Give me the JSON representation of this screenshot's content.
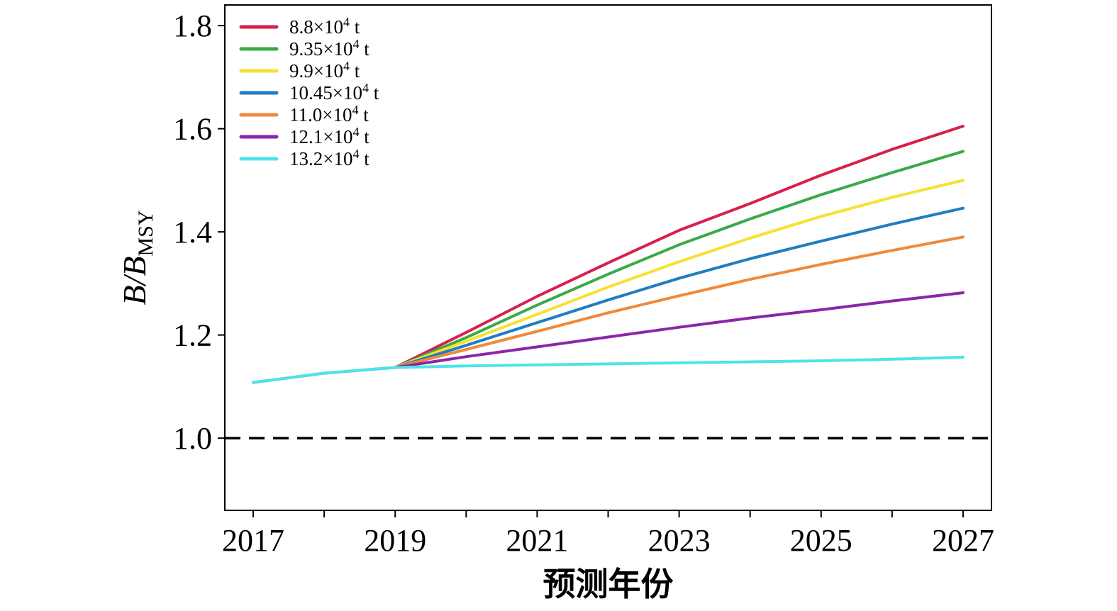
{
  "chart_data": {
    "type": "line",
    "title": "",
    "xlabel": "预测年份",
    "ylabel": {
      "main": "B/B",
      "subscript": "MSY"
    },
    "xlim": [
      2016.6,
      2027.4
    ],
    "ylim": [
      0.86,
      1.84
    ],
    "xticks": [
      2017,
      2018,
      2019,
      2020,
      2021,
      2022,
      2023,
      2024,
      2025,
      2026,
      2027
    ],
    "xtick_labels": [
      {
        "x": 2017,
        "label": "2017"
      },
      {
        "x": 2019,
        "label": "2019"
      },
      {
        "x": 2021,
        "label": "2021"
      },
      {
        "x": 2023,
        "label": "2023"
      },
      {
        "x": 2025,
        "label": "2025"
      },
      {
        "x": 2027,
        "label": "2027"
      }
    ],
    "yticks": [
      {
        "y": 1.0,
        "label": "1.0"
      },
      {
        "y": 1.2,
        "label": "1.2"
      },
      {
        "y": 1.4,
        "label": "1.4"
      },
      {
        "y": 1.6,
        "label": "1.6"
      },
      {
        "y": 1.8,
        "label": "1.8"
      }
    ],
    "reference_line": {
      "y": 1.0,
      "style": "dashed",
      "color": "#000000"
    },
    "legend_position": "top-left",
    "history": {
      "x": [
        2017,
        2018,
        2019
      ],
      "y": [
        1.108,
        1.126,
        1.137
      ]
    },
    "series": [
      {
        "name": "8.8×10⁴ t",
        "base": "8.8×10",
        "exp": "4",
        "unit": " t",
        "color": "#d81f4d",
        "x": [
          2019,
          2020,
          2021,
          2022,
          2023,
          2024,
          2025,
          2026,
          2027
        ],
        "y": [
          1.137,
          1.205,
          1.275,
          1.34,
          1.403,
          1.455,
          1.51,
          1.56,
          1.605
        ]
      },
      {
        "name": "9.35×10⁴ t",
        "base": "9.35×10",
        "exp": "4",
        "unit": " t",
        "color": "#3aaa49",
        "x": [
          2019,
          2020,
          2021,
          2022,
          2023,
          2024,
          2025,
          2026,
          2027
        ],
        "y": [
          1.137,
          1.195,
          1.258,
          1.318,
          1.375,
          1.425,
          1.472,
          1.515,
          1.556
        ]
      },
      {
        "name": "9.9×10⁴ t",
        "base": "9.9×10",
        "exp": "4",
        "unit": " t",
        "color": "#f5e232",
        "x": [
          2019,
          2020,
          2021,
          2022,
          2023,
          2024,
          2025,
          2026,
          2027
        ],
        "y": [
          1.137,
          1.188,
          1.24,
          1.293,
          1.342,
          1.388,
          1.43,
          1.467,
          1.5
        ]
      },
      {
        "name": "10.45×10⁴ t",
        "base": "10.45×10",
        "exp": "4",
        "unit": " t",
        "color": "#1f7ec2",
        "x": [
          2019,
          2020,
          2021,
          2022,
          2023,
          2024,
          2025,
          2026,
          2027
        ],
        "y": [
          1.137,
          1.18,
          1.224,
          1.268,
          1.31,
          1.348,
          1.382,
          1.415,
          1.446
        ]
      },
      {
        "name": "11.0×10⁴ t",
        "base": "11.0×10",
        "exp": "4",
        "unit": " t",
        "color": "#ee8a3c",
        "x": [
          2019,
          2020,
          2021,
          2022,
          2023,
          2024,
          2025,
          2026,
          2027
        ],
        "y": [
          1.137,
          1.172,
          1.207,
          1.243,
          1.276,
          1.308,
          1.337,
          1.364,
          1.39
        ]
      },
      {
        "name": "12.1×10⁴ t",
        "base": "12.1×10",
        "exp": "4",
        "unit": " t",
        "color": "#8b26a8",
        "x": [
          2019,
          2020,
          2021,
          2022,
          2023,
          2024,
          2025,
          2026,
          2027
        ],
        "y": [
          1.137,
          1.158,
          1.177,
          1.196,
          1.215,
          1.233,
          1.249,
          1.266,
          1.282
        ]
      },
      {
        "name": "13.2×10⁴ t",
        "base": "13.2×10",
        "exp": "4",
        "unit": " t",
        "color": "#4ce4e8",
        "x": [
          2019,
          2020,
          2021,
          2022,
          2023,
          2024,
          2025,
          2026,
          2027
        ],
        "y": [
          1.137,
          1.14,
          1.142,
          1.144,
          1.146,
          1.148,
          1.15,
          1.153,
          1.157
        ]
      }
    ]
  }
}
